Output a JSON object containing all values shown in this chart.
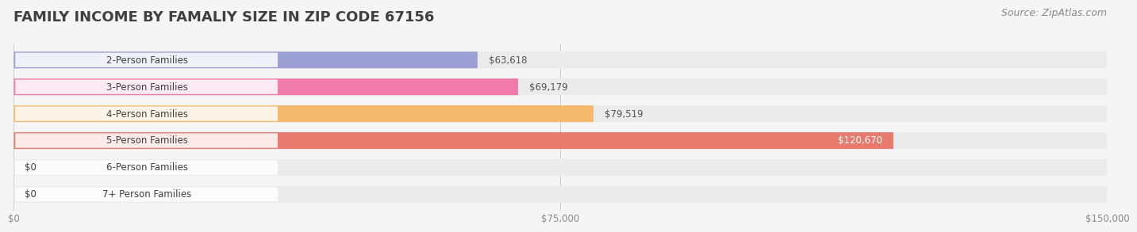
{
  "title": "FAMILY INCOME BY FAMALIY SIZE IN ZIP CODE 67156",
  "source": "Source: ZipAtlas.com",
  "categories": [
    "2-Person Families",
    "3-Person Families",
    "4-Person Families",
    "5-Person Families",
    "6-Person Families",
    "7+ Person Families"
  ],
  "values": [
    63618,
    69179,
    79519,
    120670,
    0,
    0
  ],
  "bar_colors": [
    "#9b9fd4",
    "#f07baa",
    "#f5b96e",
    "#e87b6e",
    "#a8c4e0",
    "#c9b8d8"
  ],
  "label_colors": [
    "#555555",
    "#555555",
    "#555555",
    "#ffffff",
    "#555555",
    "#555555"
  ],
  "xlim": [
    0,
    150000
  ],
  "xticks": [
    0,
    75000,
    150000
  ],
  "xtick_labels": [
    "$0",
    "$75,000",
    "$150,000"
  ],
  "background_color": "#f5f5f5",
  "bar_bg_color": "#ebebeb",
  "title_color": "#404040",
  "source_color": "#888888",
  "title_fontsize": 13,
  "source_fontsize": 9,
  "label_fontsize": 8.5,
  "category_fontsize": 8.5,
  "tick_fontsize": 8.5
}
